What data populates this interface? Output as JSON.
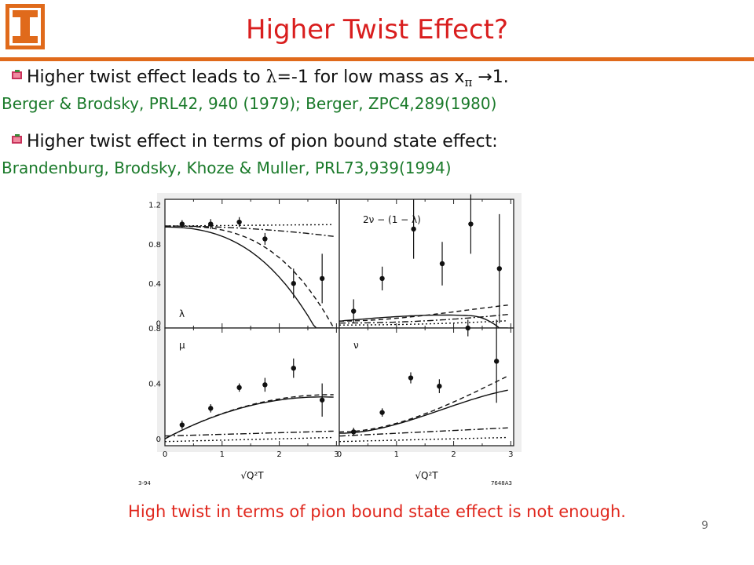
{
  "slide": {
    "title": "Higher Twist Effect?",
    "page_number": "9"
  },
  "bullets": [
    {
      "text_before": "Higher  twist effect leads to ",
      "lambda": "λ",
      "text_mid": "=-1 for low mass as x",
      "pi": "π",
      "arrow": " →",
      "text_after": "1.",
      "ref": "Berger & Brodsky, PRL42, 940 (1979); Berger, ZPC4,289(1980)"
    },
    {
      "text": "Higher twist effect in terms of pion bound state effect:",
      "ref": "Brandenburg, Brodsky, Khoze & Muller, PRL73,939(1994)"
    }
  ],
  "conclusion": "High twist in  terms of pion bound state effect is not enough.",
  "colors": {
    "title": "#d91e1e",
    "reference": "#1a7a2a",
    "rule": "#e06a1b",
    "conclusion": "#e0281e",
    "logo": "#e06a1b"
  },
  "figure": {
    "corner_left": "3-94",
    "corner_right": "7648A3",
    "xaxis_label": "√Q²T",
    "panels": [
      {
        "label": "λ",
        "yticks": [
          "1.2",
          "0.8",
          "0.4",
          "0"
        ],
        "points": [
          {
            "x": 0.3,
            "y": 1.0,
            "err": 0.04
          },
          {
            "x": 0.8,
            "y": 1.0,
            "err": 0.05
          },
          {
            "x": 1.3,
            "y": 1.02,
            "err": 0.05
          },
          {
            "x": 1.75,
            "y": 0.85,
            "err": 0.06
          },
          {
            "x": 2.25,
            "y": 0.4,
            "err": 0.15
          },
          {
            "x": 2.75,
            "y": 0.45,
            "err": 0.25
          }
        ]
      },
      {
        "label": "2ν − (1 − λ)",
        "points": [
          {
            "x": 0.25,
            "y": 0.12,
            "err": 0.12
          },
          {
            "x": 0.75,
            "y": 0.45,
            "err": 0.12
          },
          {
            "x": 1.3,
            "y": 0.95,
            "err": 0.3
          },
          {
            "x": 1.8,
            "y": 0.6,
            "err": 0.22
          },
          {
            "x": 2.3,
            "y": 1.0,
            "err": 0.3
          },
          {
            "x": 2.8,
            "y": 0.55,
            "err": 0.55
          }
        ]
      },
      {
        "label": "μ",
        "yticks": [
          "0.8",
          "0.4",
          "0"
        ],
        "xticks": [
          "0",
          "1",
          "2",
          "3"
        ],
        "points": [
          {
            "x": 0.3,
            "y": 0.1,
            "err": 0.03
          },
          {
            "x": 0.8,
            "y": 0.22,
            "err": 0.03
          },
          {
            "x": 1.3,
            "y": 0.37,
            "err": 0.03
          },
          {
            "x": 1.75,
            "y": 0.39,
            "err": 0.05
          },
          {
            "x": 2.25,
            "y": 0.51,
            "err": 0.07
          },
          {
            "x": 2.75,
            "y": 0.28,
            "err": 0.12
          }
        ]
      },
      {
        "label": "ν",
        "xticks": [
          "0",
          "1",
          "2",
          "3"
        ],
        "points": [
          {
            "x": 0.25,
            "y": 0.05,
            "err": 0.03
          },
          {
            "x": 0.75,
            "y": 0.19,
            "err": 0.03
          },
          {
            "x": 1.25,
            "y": 0.44,
            "err": 0.04
          },
          {
            "x": 1.75,
            "y": 0.38,
            "err": 0.05
          },
          {
            "x": 2.25,
            "y": 0.8,
            "err": 0.06
          },
          {
            "x": 2.75,
            "y": 0.56,
            "err": 0.3
          }
        ]
      }
    ]
  }
}
